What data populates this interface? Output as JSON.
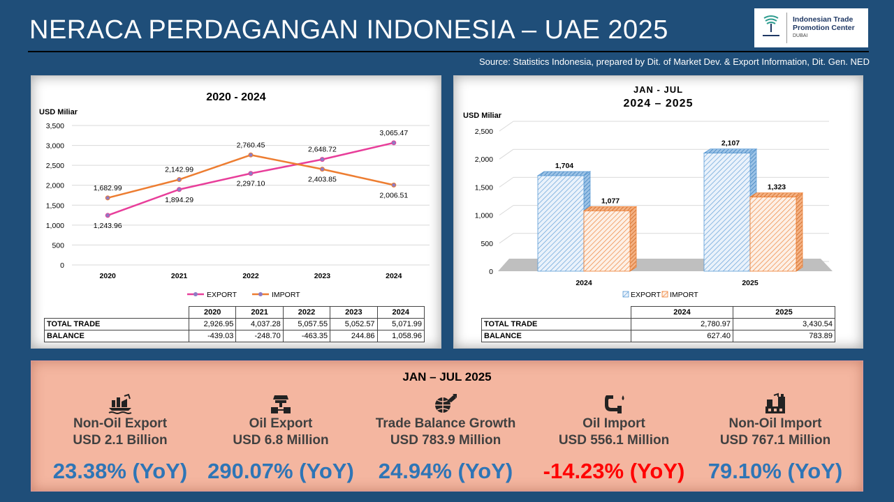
{
  "header": {
    "title": "NERACA PERDAGANGAN INDONESIA – UAE 2025",
    "source": "Source: Statistics Indonesia, prepared by Dit. of Market Dev. & Export Information,  Dit. Gen. NED",
    "logo": {
      "line1": "Indonesian Trade",
      "line2": "Promotion Center",
      "line3": "DUBAI"
    }
  },
  "colors": {
    "export_line": "#e83e9a",
    "import_line": "#ed7d31",
    "export_bar": "#5b9bd5",
    "import_bar": "#ed7d31",
    "positive": "#2e75b6",
    "negative": "#ff0000",
    "background": "#1f4e79"
  },
  "chart_data": [
    {
      "type": "line",
      "title": "2020 - 2024",
      "ylabel": "USD Miliar",
      "xlabel": "",
      "x": [
        "2020",
        "2021",
        "2022",
        "2023",
        "2024"
      ],
      "ylim": [
        0,
        3500
      ],
      "yticks": [
        "0",
        "500",
        "1,000",
        "1,500",
        "2,000",
        "2,500",
        "3,000",
        "3,500"
      ],
      "series": [
        {
          "name": "EXPORT",
          "values": [
            1243.96,
            1894.29,
            2297.1,
            2648.72,
            3065.47
          ],
          "labels": [
            "1,243.96",
            "1,894.29",
            "2,297.10",
            "2,648.72",
            "3,065.47"
          ]
        },
        {
          "name": "IMPORT",
          "values": [
            1682.99,
            2142.99,
            2760.45,
            2403.85,
            2006.51
          ],
          "labels": [
            "1,682.99",
            "2,142.99",
            "2,760.45",
            "2,403.85",
            "2,006.51"
          ]
        }
      ],
      "legend": "bottom"
    },
    {
      "type": "bar",
      "title_line1": "JAN - JUL",
      "title_line2": "2024 – 2025",
      "ylabel": "USD Miliar",
      "categories": [
        "2024",
        "2025"
      ],
      "ylim": [
        0,
        2500
      ],
      "yticks": [
        "0",
        "500",
        "1,000",
        "1,500",
        "2,000",
        "2,500"
      ],
      "series": [
        {
          "name": "EXPORT",
          "values": [
            1704,
            2107
          ],
          "labels": [
            "1,704",
            "2,107"
          ]
        },
        {
          "name": "IMPORT",
          "values": [
            1077,
            1323
          ],
          "labels": [
            "1,077",
            "1,323"
          ]
        }
      ],
      "legend": "bottom"
    }
  ],
  "table1": {
    "headers": [
      "2020",
      "2021",
      "2022",
      "2023",
      "2024"
    ],
    "rows": [
      {
        "label": "TOTAL TRADE",
        "values": [
          "2,926.95",
          "4,037.28",
          "5,057.55",
          "5,052.57",
          "5,071.99"
        ]
      },
      {
        "label": "BALANCE",
        "values": [
          "-439.03",
          "-248.70",
          "-463.35",
          "244.86",
          "1,058.96"
        ]
      }
    ]
  },
  "table2": {
    "headers": [
      "2024",
      "2025"
    ],
    "rows": [
      {
        "label": "TOTAL TRADE",
        "values": [
          "2,780.97",
          "3,430.54"
        ]
      },
      {
        "label": "BALANCE",
        "values": [
          "627.40",
          "783.89"
        ]
      }
    ]
  },
  "summary": {
    "title": "JAN – JUL 2025",
    "items": [
      {
        "label": "Non-Oil Export",
        "value": "USD 2.1 Billion",
        "growth": "23.38% (YoY)",
        "icon": "factory-ship-icon"
      },
      {
        "label": "Oil Export",
        "value": "USD 6.8 Million",
        "growth": "290.07% (YoY)",
        "icon": "oil-refinery-icon"
      },
      {
        "label": "Trade Balance Growth",
        "value": "USD 783.9 Million",
        "growth": "24.94% (YoY)",
        "icon": "globe-growth-icon"
      },
      {
        "label": "Oil Import",
        "value": "USD 556.1 Million",
        "growth": "-14.23% (YoY)",
        "icon": "oil-pipe-icon"
      },
      {
        "label": "Non-Oil Import",
        "value": "USD 767.1 Million",
        "growth": "79.10% (YoY)",
        "icon": "import-factory-icon"
      }
    ]
  }
}
